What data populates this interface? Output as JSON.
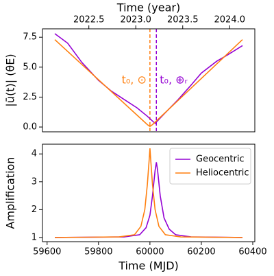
{
  "chart_data": [
    {
      "type": "line",
      "x2label": "Time (year)",
      "x2lim": [
        2022.006,
        2024.268
      ],
      "x2ticks": [
        2022.5,
        {
          "value": 2023,
          "label": "2023.0"
        },
        2023.5,
        {
          "value": 2024,
          "label": "2024.0"
        }
      ],
      "xlim": [
        59582,
        60408
      ],
      "ylabel": "|ū(t)| (θE)",
      "ylim": [
        -0.4,
        8.2
      ],
      "yticks": [
        {
          "value": 0,
          "label": "0.0"
        },
        2.5,
        {
          "value": 5,
          "label": "5.0"
        },
        7.5
      ],
      "series": [
        {
          "name": "Geocentric",
          "color": "#9400d3",
          "x": [
            59630,
            59680,
            59735,
            59800,
            59850,
            59900,
            59950,
            59990,
            60020,
            60060,
            60110,
            60160,
            60200,
            60260,
            60300,
            60360
          ],
          "values": [
            7.8,
            7.0,
            5.4,
            3.9,
            3.0,
            2.3,
            1.6,
            0.9,
            0.3,
            1.2,
            2.3,
            3.5,
            4.5,
            5.5,
            6.0,
            6.8
          ]
        },
        {
          "name": "Heliocentric",
          "color": "#ff7f0e",
          "x": [
            59630,
            59990,
            60000,
            60010,
            60360
          ],
          "values": [
            7.3,
            0.2,
            0.05,
            0.2,
            7.3
          ]
        }
      ],
      "annotations": [
        {
          "text": "t₀, ⊙",
          "x": 60000,
          "color": "#ff7f0e"
        },
        {
          "text": "t₀, ⊕ᵣ",
          "x": 60025,
          "color": "#9400d3"
        }
      ]
    },
    {
      "type": "line",
      "xlabel": "Time (MJD)",
      "xlim": [
        59582,
        60408
      ],
      "xticks": [
        59600,
        59800,
        60000,
        60200,
        60400
      ],
      "ylabel": "Amplification",
      "ylim": [
        0.85,
        4.35
      ],
      "yticks": [
        1,
        2,
        3,
        4
      ],
      "legend": "upper right",
      "series": [
        {
          "name": "Geocentric",
          "color": "#9400d3",
          "x": [
            59630,
            59900,
            59960,
            59985,
            60000,
            60010,
            60020,
            60025,
            60030,
            60040,
            60055,
            60075,
            60100,
            60160,
            60360
          ],
          "values": [
            1.0,
            1.02,
            1.1,
            1.35,
            1.8,
            2.5,
            3.4,
            3.7,
            3.4,
            2.5,
            1.7,
            1.3,
            1.1,
            1.02,
            1.0
          ]
        },
        {
          "name": "Heliocentric",
          "color": "#ff7f0e",
          "x": [
            59630,
            59880,
            59940,
            59965,
            59980,
            59990,
            59997,
            60000,
            60003,
            60010,
            60020,
            60035,
            60060,
            60120,
            60360
          ],
          "values": [
            1.0,
            1.02,
            1.1,
            1.4,
            2.0,
            2.9,
            3.8,
            4.2,
            3.8,
            2.9,
            2.0,
            1.4,
            1.1,
            1.02,
            1.0
          ]
        }
      ]
    }
  ]
}
